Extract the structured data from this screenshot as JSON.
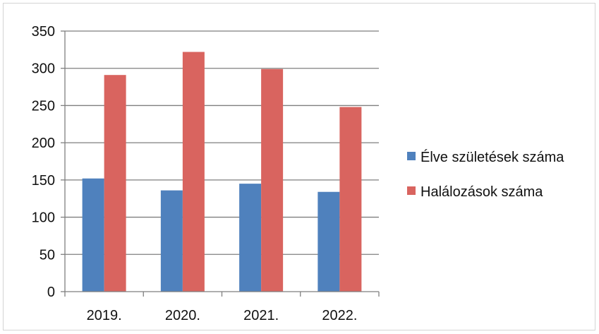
{
  "chart_data": {
    "type": "bar",
    "title": "",
    "xlabel": "",
    "ylabel": "",
    "categories": [
      "2019.",
      "2020.",
      "2021.",
      "2022."
    ],
    "series": [
      {
        "name": "Élve születések száma",
        "color": "#4f81bd",
        "values": [
          152,
          136,
          145,
          134
        ]
      },
      {
        "name": "Halálozások száma",
        "color": "#d9645f",
        "values": [
          291,
          322,
          299,
          248
        ]
      }
    ],
    "ylim": [
      0,
      350
    ],
    "yticks": [
      "0",
      "50",
      "100",
      "150",
      "200",
      "250",
      "300",
      "350"
    ],
    "grid": true,
    "legend_position": "right"
  }
}
